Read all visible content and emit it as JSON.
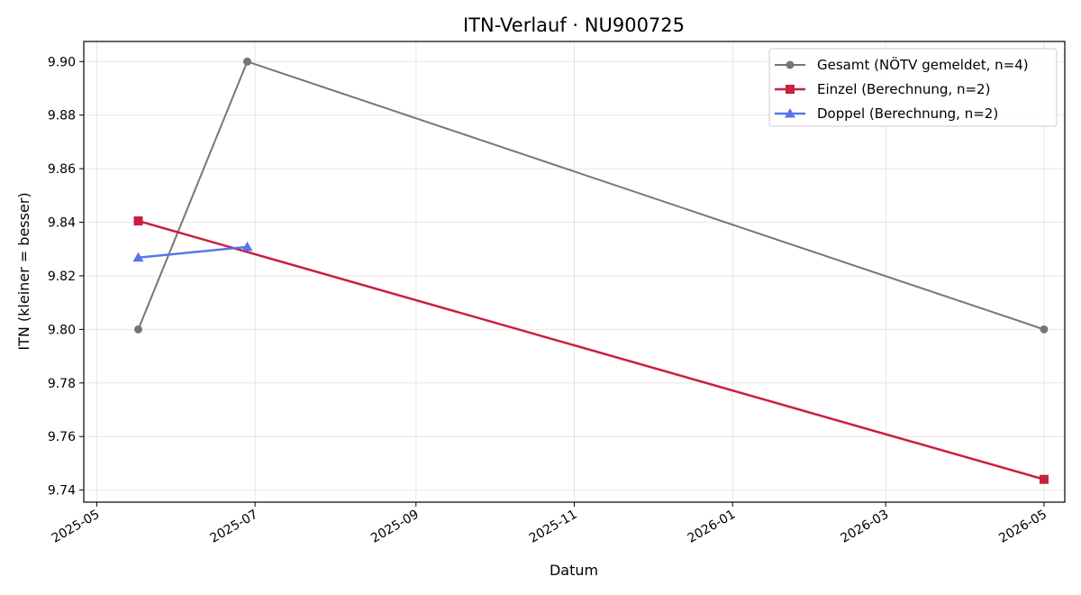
{
  "chart_data": {
    "type": "line",
    "title": "ITN-Verlauf · NU900725",
    "xlabel": "Datum",
    "ylabel": "ITN  (kleiner = besser)",
    "x_type": "date",
    "xlim": [
      "2025-04-26",
      "2026-05-09"
    ],
    "ylim": [
      9.7355,
      9.9075
    ],
    "x_ticks": [
      "2025-05-01",
      "2025-07-01",
      "2025-09-01",
      "2025-11-01",
      "2026-01-01",
      "2026-03-01",
      "2026-05-01"
    ],
    "x_tick_labels": [
      "2025-05",
      "2025-07",
      "2025-09",
      "2025-11",
      "2026-01",
      "2026-03",
      "2026-05"
    ],
    "y_ticks": [
      9.74,
      9.76,
      9.78,
      9.8,
      9.82,
      9.84,
      9.86,
      9.88,
      9.9
    ],
    "y_tick_labels": [
      "9.74",
      "9.76",
      "9.78",
      "9.80",
      "9.82",
      "9.84",
      "9.86",
      "9.88",
      "9.90"
    ],
    "grid": true,
    "legend_position": "top-right",
    "series": [
      {
        "name": "Gesamt (NÖTV gemeldet, n=4)",
        "color": "#555555",
        "marker": "circle",
        "points": [
          {
            "x": "2025-05-17",
            "y": 9.8
          },
          {
            "x": "2025-06-28",
            "y": 9.9
          },
          {
            "x": "2026-05-01",
            "y": 9.8
          }
        ]
      },
      {
        "name": "Einzel (Berechnung, n=2)",
        "color": "#c8203f",
        "marker": "square",
        "points": [
          {
            "x": "2025-05-17",
            "y": 9.8405
          },
          {
            "x": "2026-05-01",
            "y": 9.744
          }
        ]
      },
      {
        "name": "Doppel (Berechnung, n=2)",
        "color": "#5070ea",
        "marker": "triangle",
        "points": [
          {
            "x": "2025-05-17",
            "y": 9.8268
          },
          {
            "x": "2025-06-28",
            "y": 9.8308
          }
        ]
      }
    ]
  }
}
